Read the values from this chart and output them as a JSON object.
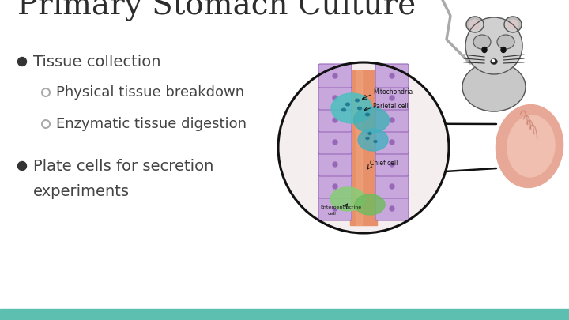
{
  "title": "Primary Stomach Culture",
  "bullet1": "Tissue collection",
  "sub1": "Physical tissue breakdown",
  "sub2": "Enzymatic tissue digestion",
  "bullet2": "Plate cells for secretion",
  "sub3": "experiments",
  "bg_color": "#ffffff",
  "title_color": "#2d2d2d",
  "bullet_color": "#444444",
  "bottom_bar_color": "#5cbfb0",
  "filled_bullet_color": "#333333",
  "open_bullet_color": "#aaaaaa",
  "title_fontsize": 28,
  "bullet_fontsize": 14,
  "sub_fontsize": 13
}
